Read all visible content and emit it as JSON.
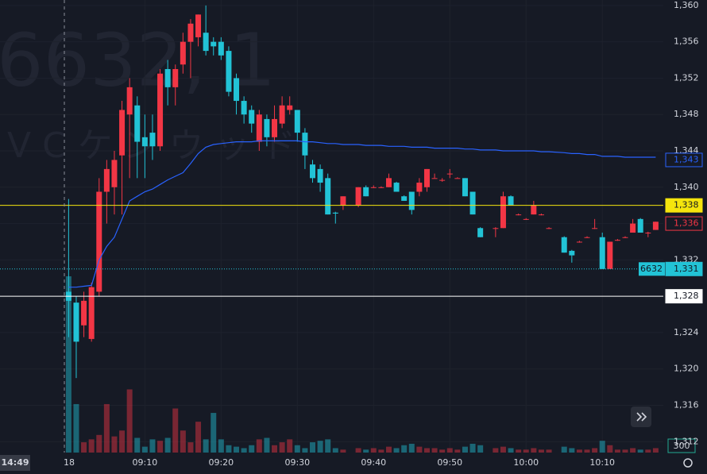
{
  "chart_data": {
    "type": "candlestick",
    "watermark": {
      "symbol": "6632, 1",
      "name": "JVCケンウッド"
    },
    "date_label": "18",
    "crosshair_label": "14:49",
    "volume_label": "300",
    "x": [
      "09:00",
      "09:01",
      "09:02",
      "09:03",
      "09:04",
      "09:05",
      "09:06",
      "09:07",
      "09:08",
      "09:09",
      "09:10",
      "09:11",
      "09:12",
      "09:13",
      "09:14",
      "09:15",
      "09:16",
      "09:17",
      "09:18",
      "09:19",
      "09:20",
      "09:21",
      "09:22",
      "09:23",
      "09:24",
      "09:25",
      "09:26",
      "09:27",
      "09:28",
      "09:29",
      "09:30",
      "09:31",
      "09:32",
      "09:33",
      "09:34",
      "09:35",
      "09:36",
      "09:38",
      "09:39",
      "09:40",
      "09:41",
      "09:42",
      "09:43",
      "09:44",
      "09:45",
      "09:46",
      "09:47",
      "09:48",
      "09:49",
      "09:50",
      "09:51",
      "09:52",
      "09:53",
      "09:54",
      "09:56",
      "09:57",
      "09:58",
      "09:59",
      "10:00",
      "10:01",
      "10:02",
      "10:03",
      "10:05",
      "10:06",
      "10:07",
      "10:08",
      "10:09",
      "10:10",
      "10:11",
      "10:12",
      "10:13",
      "10:14",
      "10:15",
      "10:16",
      "10:17"
    ],
    "open": [
      1328.5,
      1327.3,
      1324.8,
      1323.3,
      1328.5,
      1339.5,
      1340,
      1343.5,
      1348,
      1349,
      1345.5,
      1346,
      1344.5,
      1353,
      1351,
      1353.5,
      1356,
      1356.5,
      1357,
      1356,
      1356,
      1355,
      1352,
      1349.5,
      1348.5,
      1345,
      1347.5,
      1345.5,
      1347,
      1348.5,
      1348.5,
      1346,
      1342.5,
      1342,
      1341,
      1337.2,
      1338,
      1338,
      1340,
      1340,
      1340,
      1340,
      1340.5,
      1339,
      1339.5,
      1339.5,
      1340,
      1341,
      1340.8,
      1341.5,
      1341,
      1341,
      1339.5,
      1335.5,
      1335.5,
      1335.5,
      1339,
      1337,
      1336.5,
      1337,
      1337,
      1335.5,
      1334.5,
      1333,
      1334,
      1334.5,
      1335.5,
      1334.5,
      1331,
      1334.2,
      1334.5,
      1335,
      1336.5,
      1335,
      1335.3
    ],
    "high": [
      1338.7,
      1328,
      1328.5,
      1329.5,
      1341,
      1343,
      1344,
      1349.5,
      1352,
      1350,
      1348,
      1348,
      1353,
      1354,
      1353.5,
      1357,
      1358.5,
      1359,
      1360,
      1356.5,
      1356.5,
      1355.5,
      1352.5,
      1350,
      1349,
      1348.5,
      1348,
      1349,
      1350,
      1350,
      1348.5,
      1346.5,
      1343,
      1342.5,
      1341.5,
      1337.3,
      1339,
      1340,
      1340.2,
      1340.2,
      1340.1,
      1341.5,
      1340.6,
      1339.1,
      1339.5,
      1341,
      1342,
      1341.5,
      1341,
      1342,
      1341.1,
      1341,
      1339.5,
      1335.6,
      1335.6,
      1339.5,
      1339.1,
      1337.1,
      1336.6,
      1338.5,
      1337.1,
      1335.6,
      1334.6,
      1333.1,
      1334.1,
      1334.6,
      1336.5,
      1335,
      1334,
      1334.3,
      1334.6,
      1336.5,
      1336.6,
      1335.1,
      1336.2
    ],
    "low": [
      1323.5,
      1319,
      1323.5,
      1323,
      1328,
      1336,
      1337,
      1337,
      1341,
      1341,
      1341,
      1343,
      1344,
      1349,
      1349,
      1352.5,
      1352,
      1355.5,
      1354.5,
      1354.5,
      1354,
      1350,
      1348,
      1347,
      1346,
      1344,
      1344.5,
      1345,
      1346.5,
      1348,
      1345,
      1342,
      1340.5,
      1339.5,
      1337,
      1336,
      1337.5,
      1337.8,
      1339,
      1339.9,
      1339.9,
      1340,
      1339.5,
      1338.5,
      1337,
      1339,
      1339.5,
      1341,
      1340.6,
      1341,
      1341,
      1339,
      1337,
      1334.5,
      1334.5,
      1335.5,
      1338,
      1336.9,
      1336.4,
      1337,
      1336.9,
      1335.4,
      1332.8,
      1331.7,
      1333.9,
      1334.4,
      1335.4,
      1331,
      1331,
      1334.1,
      1334.4,
      1335,
      1335,
      1334.5,
      1335.3
    ],
    "close": [
      1327.5,
      1323,
      1327.5,
      1329,
      1339.5,
      1342,
      1343,
      1348.5,
      1351,
      1345,
      1344.5,
      1344.5,
      1352.5,
      1351,
      1353,
      1356,
      1358,
      1359,
      1355,
      1355.5,
      1354.5,
      1350.5,
      1349.5,
      1348,
      1347,
      1348,
      1345.5,
      1347.5,
      1349,
      1349,
      1346,
      1343.5,
      1341,
      1340.5,
      1337,
      1337.1,
      1339,
      1340,
      1339,
      1340,
      1340,
      1341,
      1339.5,
      1338.5,
      1337.5,
      1340.5,
      1342,
      1341,
      1340.8,
      1341.5,
      1341,
      1339,
      1337,
      1334.5,
      1335.5,
      1339,
      1338,
      1337,
      1336.5,
      1338,
      1337,
      1335.5,
      1332.8,
      1332.5,
      1334,
      1334.5,
      1335.5,
      1331,
      1334,
      1334.2,
      1334.5,
      1336,
      1335,
      1335,
      1336.2
    ],
    "volume": [
      12000,
      3300,
      700,
      900,
      1200,
      3300,
      1100,
      1500,
      4300,
      1000,
      400,
      900,
      800,
      1000,
      3000,
      1500,
      700,
      2100,
      900,
      2700,
      900,
      500,
      400,
      300,
      500,
      900,
      1000,
      500,
      700,
      900,
      500,
      300,
      700,
      800,
      900,
      300,
      200,
      300,
      200,
      300,
      200,
      400,
      300,
      500,
      600,
      400,
      300,
      300,
      200,
      300,
      200,
      400,
      600,
      500,
      300,
      400,
      300,
      200,
      200,
      300,
      200,
      200,
      400,
      300,
      200,
      200,
      300,
      800,
      500,
      200,
      200,
      300,
      200,
      200,
      300
    ],
    "vwap": [
      1329,
      1329,
      1329.1,
      1329.2,
      1332,
      1333.5,
      1334.5,
      1336.5,
      1338.5,
      1339,
      1339.5,
      1339.8,
      1340.3,
      1340.8,
      1341.2,
      1341.6,
      1342.6,
      1343.7,
      1344.4,
      1344.7,
      1344.8,
      1344.9,
      1345,
      1345,
      1345,
      1345.1,
      1345.1,
      1345.1,
      1345.1,
      1345.1,
      1345.1,
      1345,
      1345,
      1344.9,
      1344.8,
      1344.8,
      1344.7,
      1344.7,
      1344.6,
      1344.6,
      1344.6,
      1344.5,
      1344.5,
      1344.5,
      1344.4,
      1344.4,
      1344.4,
      1344.3,
      1344.3,
      1344.3,
      1344.3,
      1344.2,
      1344.2,
      1344.1,
      1344.1,
      1344,
      1344,
      1344,
      1344,
      1344,
      1343.9,
      1343.9,
      1343.8,
      1343.7,
      1343.7,
      1343.6,
      1343.6,
      1343.4,
      1343.4,
      1343.4,
      1343.3,
      1343.3,
      1343.3,
      1343.3,
      1343.3
    ],
    "up_color": "#f23645",
    "down_color": "#22c3d6",
    "vwap_color": "#2962ff",
    "xlim": [
      "08:51",
      "10:18"
    ],
    "xticks": [
      "09:10",
      "09:20",
      "09:30",
      "09:40",
      "09:50",
      "10:00",
      "10:10"
    ],
    "ylim": [
      1310.8,
      1360.6
    ],
    "yticks": [
      {
        "value": 1312,
        "label": "1,312"
      },
      {
        "value": 1316,
        "label": "1,316"
      },
      {
        "value": 1320,
        "label": "1,320"
      },
      {
        "value": 1324,
        "label": "1,324"
      },
      {
        "value": 1328,
        "label": "1,328"
      },
      {
        "value": 1332,
        "label": "1,332"
      },
      {
        "value": 1336,
        "label": "1,336"
      },
      {
        "value": 1340,
        "label": "1,340"
      },
      {
        "value": 1344,
        "label": "1,344"
      },
      {
        "value": 1348,
        "label": "1,348"
      },
      {
        "value": 1352,
        "label": "1,352"
      },
      {
        "value": 1356,
        "label": "1,356"
      },
      {
        "value": 1360,
        "label": "1,360"
      }
    ],
    "volume_lim": [
      0,
      12000
    ],
    "grid": true,
    "price_lines": [
      {
        "value": 1343,
        "label": "1,343",
        "color": "#2962ff",
        "style": "outline",
        "line": "none"
      },
      {
        "value": 1338,
        "label": "1,338",
        "color": "#f5e50d",
        "style": "filled",
        "line": "solid"
      },
      {
        "value": 1336,
        "label": "1,336",
        "color": "#f23645",
        "style": "outline",
        "line": "none"
      },
      {
        "value": 1331,
        "label": "1,331",
        "color": "#22c3d6",
        "style": "filled",
        "line": "dotted",
        "tag": "6632"
      },
      {
        "value": 1328,
        "label": "1,328",
        "color": "#ffffff",
        "style": "filled",
        "line": "solid"
      }
    ]
  }
}
